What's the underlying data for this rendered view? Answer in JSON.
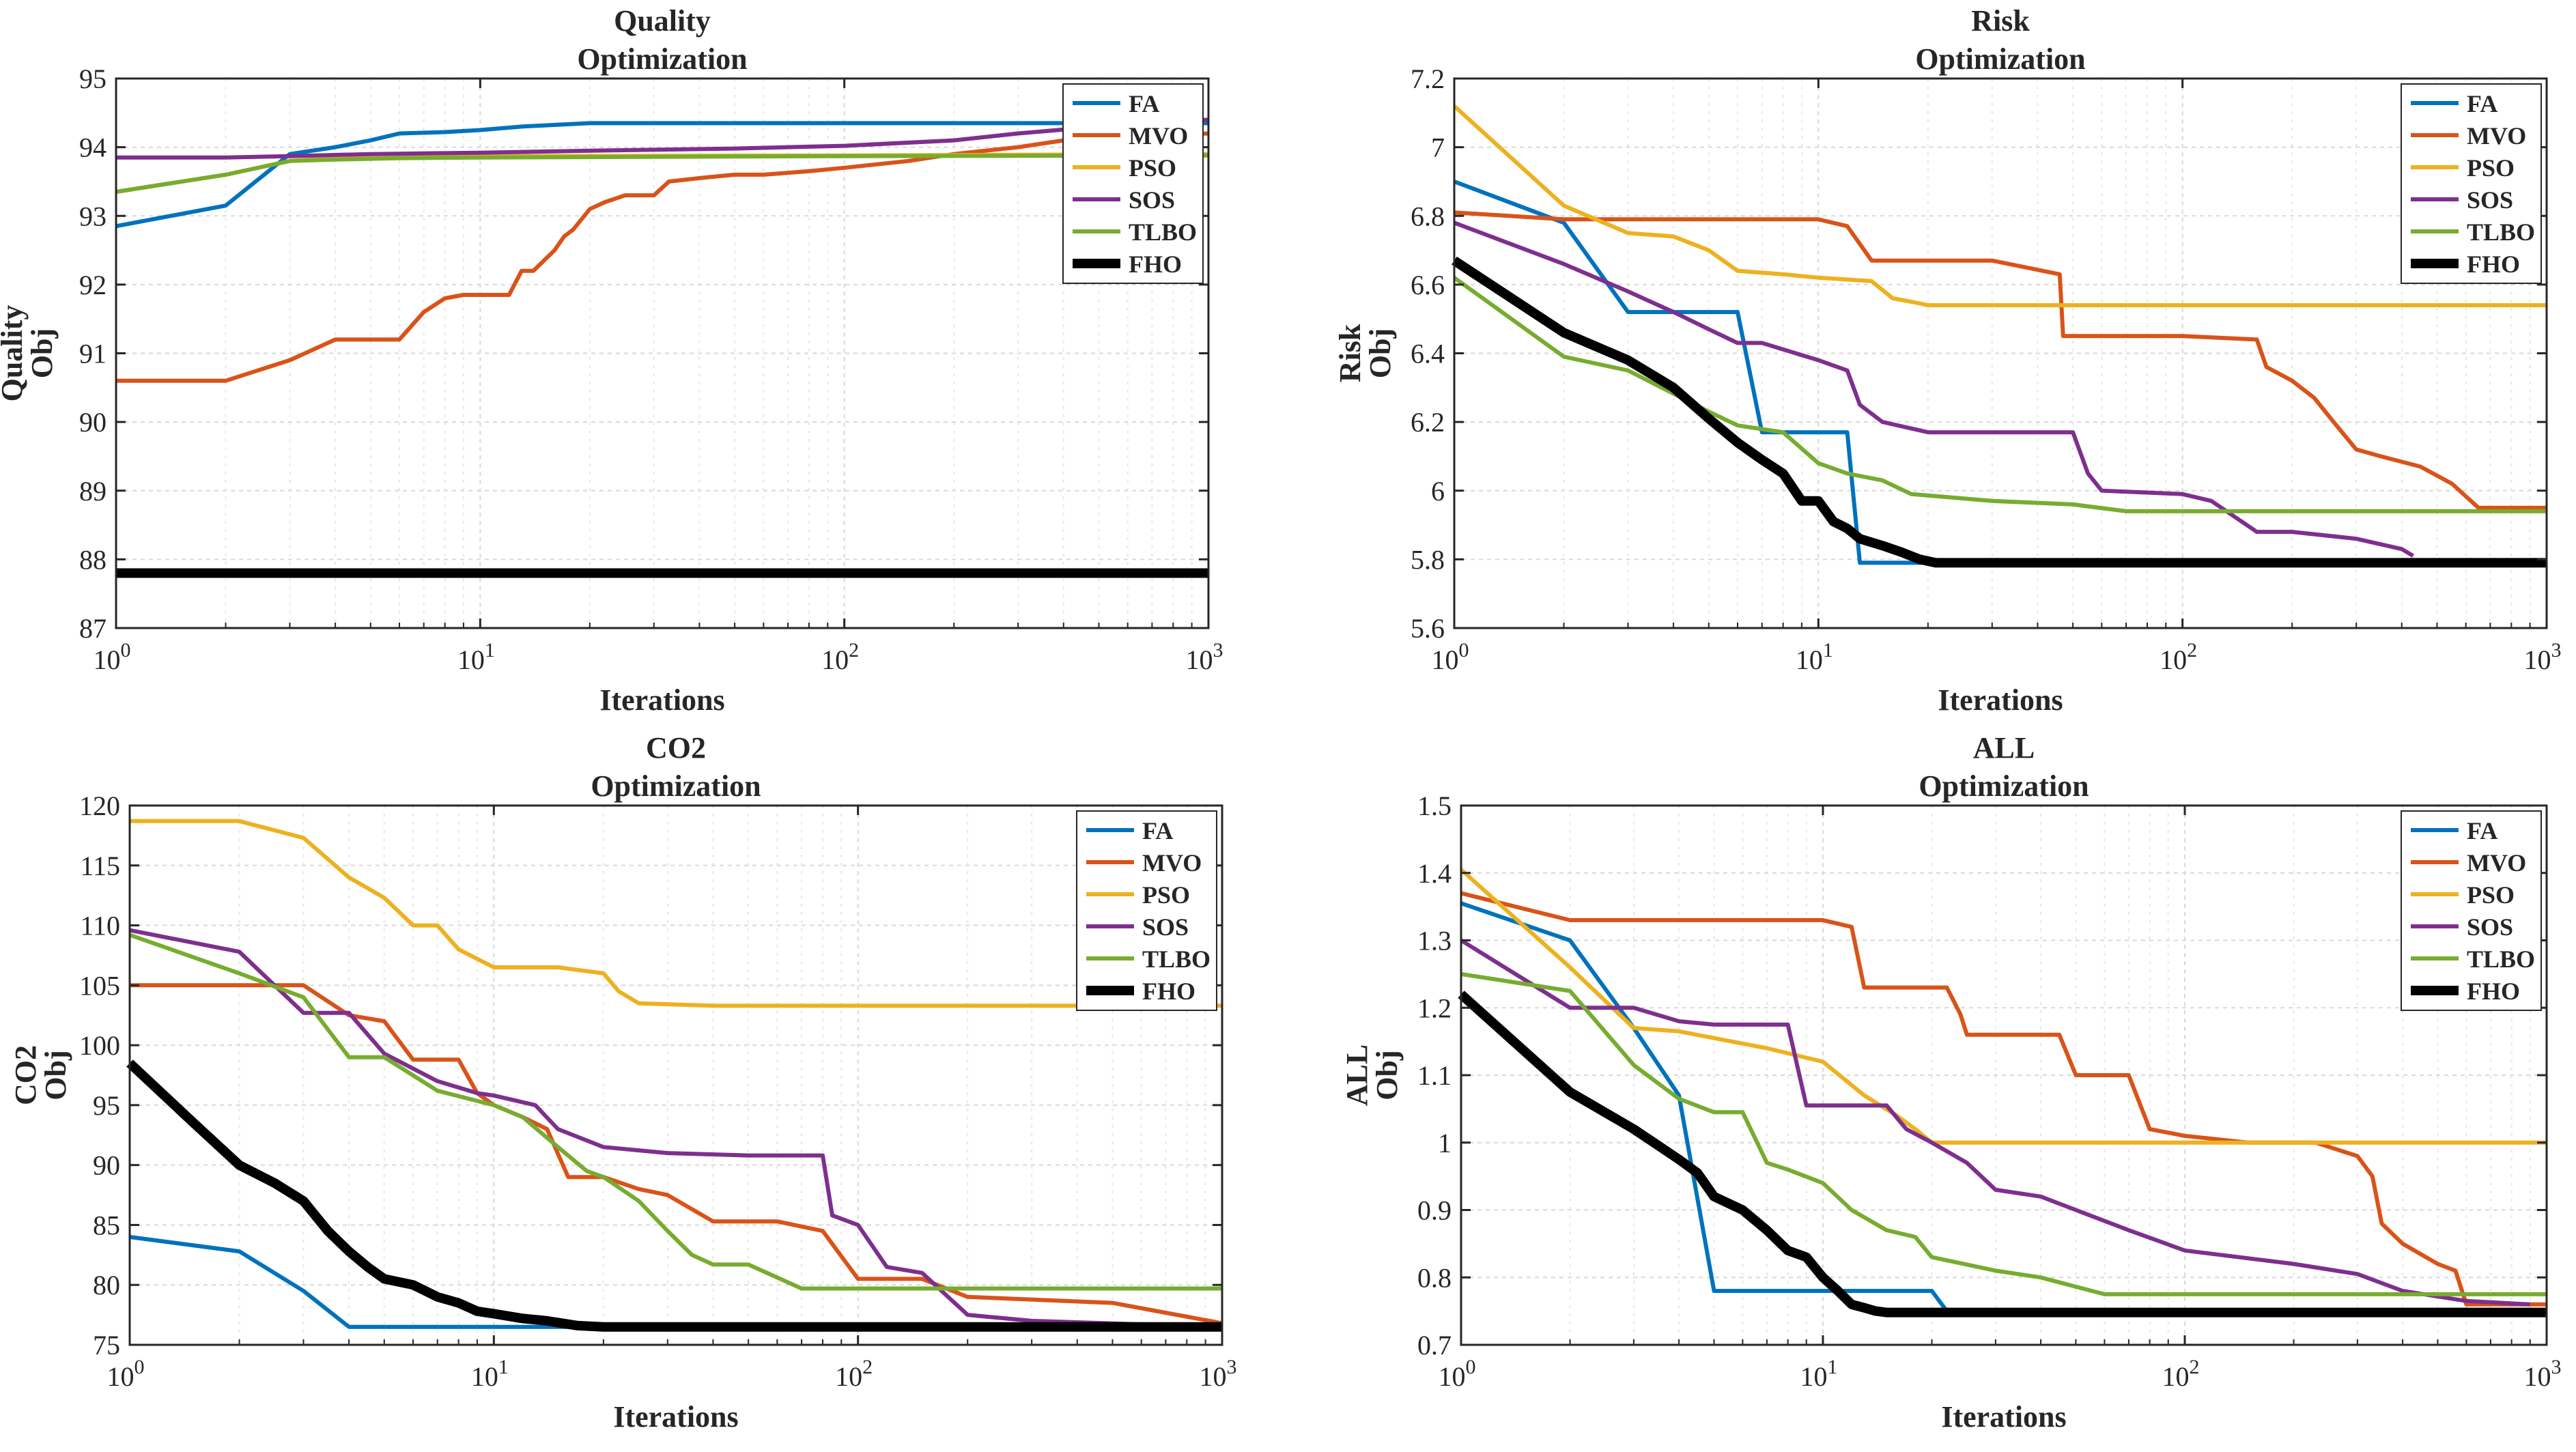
{
  "series_colors": {
    "FA": "#0072BD",
    "MVO": "#D95319",
    "PSO": "#EDB120",
    "SOS": "#7E2F8E",
    "TLBO": "#77AC30",
    "FHO": "#000000"
  },
  "chart_data": [
    {
      "type": "line",
      "title": [
        "Quality",
        "Optimization"
      ],
      "xlabel": "Iterations",
      "ylabel": [
        "Quality",
        "Obj"
      ],
      "xscale": "log",
      "xlim": [
        1,
        1000
      ],
      "ylim": [
        87,
        95
      ],
      "yticks": [
        87,
        88,
        89,
        90,
        91,
        92,
        93,
        94,
        95
      ],
      "ytick_labels": [
        "87",
        "88",
        "89",
        "90",
        "91",
        "92",
        "93",
        "94",
        "95"
      ],
      "xticks": [
        1,
        10,
        100,
        1000
      ],
      "xtick_labels": [
        {
          "base": "10",
          "exp": "0"
        },
        {
          "base": "10",
          "exp": "1"
        },
        {
          "base": "10",
          "exp": "2"
        },
        {
          "base": "10",
          "exp": "3"
        }
      ],
      "grid": true,
      "legend": "top-right",
      "series": [
        {
          "name": "FA",
          "x": [
            1,
            2,
            3,
            4,
            5,
            6,
            8,
            10,
            13,
            20,
            30,
            100,
            1000
          ],
          "y": [
            92.85,
            93.15,
            93.9,
            94.0,
            94.1,
            94.2,
            94.22,
            94.25,
            94.3,
            94.35,
            94.35,
            94.35,
            94.35
          ]
        },
        {
          "name": "MVO",
          "x": [
            1,
            2,
            3,
            4,
            5,
            6,
            7,
            8,
            9,
            10,
            12,
            13,
            14,
            16,
            17,
            18,
            20,
            22,
            25,
            30,
            33,
            40,
            50,
            60,
            80,
            100,
            150,
            200,
            300,
            400,
            1000
          ],
          "y": [
            90.6,
            90.6,
            90.9,
            91.2,
            91.2,
            91.2,
            91.6,
            91.8,
            91.85,
            91.85,
            91.85,
            92.2,
            92.2,
            92.5,
            92.7,
            92.8,
            93.1,
            93.2,
            93.3,
            93.3,
            93.5,
            93.55,
            93.6,
            93.6,
            93.65,
            93.7,
            93.8,
            93.9,
            94.0,
            94.1,
            94.2
          ]
        },
        {
          "name": "PSO",
          "x": [
            1,
            2,
            3,
            4,
            5,
            10,
            100,
            1000
          ],
          "y": [
            93.35,
            93.6,
            93.8,
            93.84,
            93.85,
            93.87,
            93.88,
            93.9
          ]
        },
        {
          "name": "SOS",
          "x": [
            1,
            2,
            3,
            5,
            10,
            20,
            50,
            100,
            200,
            300,
            500,
            1000
          ],
          "y": [
            93.85,
            93.85,
            93.87,
            93.9,
            93.92,
            93.95,
            93.98,
            94.02,
            94.1,
            94.2,
            94.3,
            94.4
          ]
        },
        {
          "name": "TLBO",
          "x": [
            1,
            2,
            3,
            4,
            6,
            10,
            100,
            1000
          ],
          "y": [
            93.35,
            93.6,
            93.8,
            93.82,
            93.84,
            93.85,
            93.87,
            93.88
          ]
        },
        {
          "name": "FHO",
          "x": [
            1,
            1000
          ],
          "y": [
            87.8,
            87.8
          ]
        }
      ]
    },
    {
      "type": "line",
      "title": [
        "Risk",
        "Optimization"
      ],
      "xlabel": "Iterations",
      "ylabel": [
        "Risk",
        "Obj"
      ],
      "xscale": "log",
      "xlim": [
        1,
        1000
      ],
      "ylim": [
        5.6,
        7.2
      ],
      "yticks": [
        5.6,
        5.8,
        6.0,
        6.2,
        6.4,
        6.6,
        6.8,
        7.0,
        7.2
      ],
      "ytick_labels": [
        "5.6",
        "5.8",
        "6",
        "6.2",
        "6.4",
        "6.6",
        "6.8",
        "7",
        "7.2"
      ],
      "xticks": [
        1,
        10,
        100,
        1000
      ],
      "xtick_labels": [
        {
          "base": "10",
          "exp": "0"
        },
        {
          "base": "10",
          "exp": "1"
        },
        {
          "base": "10",
          "exp": "2"
        },
        {
          "base": "10",
          "exp": "3"
        }
      ],
      "grid": true,
      "legend": "top-right",
      "series": [
        {
          "name": "FA",
          "x": [
            1,
            2,
            3,
            6,
            7,
            12,
            13,
            1000
          ],
          "y": [
            6.9,
            6.78,
            6.52,
            6.52,
            6.17,
            6.17,
            5.79,
            5.79
          ]
        },
        {
          "name": "MVO",
          "x": [
            1,
            2,
            10,
            12,
            14,
            30,
            46,
            47,
            100,
            160,
            170,
            200,
            230,
            260,
            300,
            350,
            450,
            550,
            650,
            1000
          ],
          "y": [
            6.81,
            6.79,
            6.79,
            6.77,
            6.67,
            6.67,
            6.63,
            6.45,
            6.45,
            6.44,
            6.36,
            6.32,
            6.27,
            6.2,
            6.12,
            6.1,
            6.07,
            6.02,
            5.95,
            5.95
          ]
        },
        {
          "name": "PSO",
          "x": [
            1,
            2,
            3,
            4,
            5,
            6,
            8,
            10,
            14,
            16,
            18,
            20,
            1000
          ],
          "y": [
            7.12,
            6.83,
            6.75,
            6.74,
            6.7,
            6.64,
            6.63,
            6.62,
            6.61,
            6.56,
            6.55,
            6.54,
            6.54
          ]
        },
        {
          "name": "SOS",
          "x": [
            1,
            2,
            3,
            4,
            5,
            6,
            7,
            10,
            12,
            13,
            15,
            20,
            30,
            50,
            55,
            60,
            100,
            120,
            160,
            200,
            300,
            400,
            430
          ],
          "y": [
            6.78,
            6.66,
            6.58,
            6.52,
            6.47,
            6.43,
            6.43,
            6.38,
            6.35,
            6.25,
            6.2,
            6.17,
            6.17,
            6.17,
            6.05,
            6.0,
            5.99,
            5.97,
            5.88,
            5.88,
            5.86,
            5.83,
            5.81
          ]
        },
        {
          "name": "TLBO",
          "x": [
            1,
            2,
            3,
            5,
            6,
            8,
            10,
            12,
            15,
            18,
            30,
            50,
            70,
            1000
          ],
          "y": [
            6.62,
            6.39,
            6.35,
            6.23,
            6.19,
            6.17,
            6.08,
            6.05,
            6.03,
            5.99,
            5.97,
            5.96,
            5.94,
            5.94
          ]
        },
        {
          "name": "FHO",
          "x": [
            1,
            2,
            3,
            4,
            5,
            6,
            7,
            8,
            9,
            10,
            11,
            12,
            13,
            15,
            17,
            19,
            21,
            1000
          ],
          "y": [
            6.67,
            6.46,
            6.38,
            6.3,
            6.21,
            6.14,
            6.09,
            6.05,
            5.97,
            5.97,
            5.91,
            5.89,
            5.86,
            5.84,
            5.82,
            5.8,
            5.79,
            5.79
          ]
        }
      ]
    },
    {
      "type": "line",
      "title": [
        "CO2",
        "Optimization"
      ],
      "xlabel": "Iterations",
      "ylabel": [
        "CO2",
        "Obj"
      ],
      "xscale": "log",
      "xlim": [
        1,
        1000
      ],
      "ylim": [
        75,
        120
      ],
      "yticks": [
        75,
        80,
        85,
        90,
        95,
        100,
        105,
        110,
        115,
        120
      ],
      "ytick_labels": [
        "75",
        "80",
        "85",
        "90",
        "95",
        "100",
        "105",
        "110",
        "115",
        "120"
      ],
      "xticks": [
        1,
        10,
        100,
        1000
      ],
      "xtick_labels": [
        {
          "base": "10",
          "exp": "0"
        },
        {
          "base": "10",
          "exp": "1"
        },
        {
          "base": "10",
          "exp": "2"
        },
        {
          "base": "10",
          "exp": "3"
        }
      ],
      "grid": true,
      "legend": "top-right",
      "series": [
        {
          "name": "FA",
          "x": [
            1,
            2,
            3,
            4,
            5,
            10,
            1000
          ],
          "y": [
            84,
            82.8,
            79.5,
            76.5,
            76.5,
            76.5,
            76.5
          ]
        },
        {
          "name": "MVO",
          "x": [
            1,
            2,
            3,
            4,
            5,
            6,
            8,
            9,
            10,
            12,
            14,
            16,
            20,
            25,
            30,
            40,
            60,
            80,
            100,
            150,
            200,
            500,
            1000
          ],
          "y": [
            105,
            105,
            105,
            102.5,
            102,
            98.8,
            98.8,
            96,
            95,
            94,
            93,
            89,
            89,
            88,
            87.5,
            85.3,
            85.3,
            84.5,
            80.5,
            80.5,
            79,
            78.5,
            76.8
          ]
        },
        {
          "name": "PSO",
          "x": [
            1,
            2,
            3,
            4,
            5,
            6,
            7,
            8,
            10,
            15,
            20,
            22,
            25,
            40,
            100,
            1000
          ],
          "y": [
            118.7,
            118.7,
            117.3,
            114,
            112.3,
            110,
            110,
            108,
            106.5,
            106.5,
            106,
            104.5,
            103.5,
            103.3,
            103.3,
            103.3
          ]
        },
        {
          "name": "SOS",
          "x": [
            1,
            2,
            3,
            4,
            5,
            7,
            9,
            10,
            13,
            15,
            20,
            30,
            50,
            80,
            85,
            100,
            120,
            150,
            200,
            300,
            1000
          ],
          "y": [
            109.6,
            107.8,
            102.7,
            102.7,
            99.3,
            97,
            96,
            95.8,
            95,
            93,
            91.5,
            91,
            90.8,
            90.8,
            85.8,
            85,
            81.5,
            81,
            77.5,
            77,
            76.5
          ]
        },
        {
          "name": "TLBO",
          "x": [
            1,
            2,
            3,
            4,
            5,
            7,
            10,
            12,
            15,
            18,
            20,
            25,
            30,
            35,
            40,
            50,
            70,
            100,
            1000
          ],
          "y": [
            109.2,
            106,
            104,
            99,
            99,
            96.2,
            95,
            94,
            91.5,
            89.5,
            89,
            87,
            84.5,
            82.5,
            81.7,
            81.7,
            79.7,
            79.7,
            79.7
          ]
        },
        {
          "name": "FHO",
          "x": [
            1,
            1.5,
            2,
            2.5,
            3,
            3.5,
            4,
            4.5,
            5,
            6,
            7,
            8,
            9,
            10,
            12,
            14,
            17,
            20,
            1000
          ],
          "y": [
            98.5,
            93.5,
            90,
            88.5,
            87,
            84.5,
            82.8,
            81.5,
            80.5,
            80,
            79,
            78.5,
            77.8,
            77.6,
            77.2,
            77,
            76.6,
            76.5,
            76.5
          ]
        }
      ]
    },
    {
      "type": "line",
      "title": [
        "ALL",
        "Optimization"
      ],
      "xlabel": "Iterations",
      "ylabel": [
        "ALL",
        "Obj"
      ],
      "xscale": "log",
      "xlim": [
        1,
        1000
      ],
      "ylim": [
        0.7,
        1.5
      ],
      "yticks": [
        0.7,
        0.8,
        0.9,
        1.0,
        1.1,
        1.2,
        1.3,
        1.4,
        1.5
      ],
      "ytick_labels": [
        "0.7",
        "0.8",
        "0.9",
        "1",
        "1.1",
        "1.2",
        "1.3",
        "1.4",
        "1.5"
      ],
      "xticks": [
        1,
        10,
        100,
        1000
      ],
      "xtick_labels": [
        {
          "base": "10",
          "exp": "0"
        },
        {
          "base": "10",
          "exp": "1"
        },
        {
          "base": "10",
          "exp": "2"
        },
        {
          "base": "10",
          "exp": "3"
        }
      ],
      "grid": true,
      "legend": "top-right",
      "series": [
        {
          "name": "FA",
          "x": [
            1,
            2,
            3,
            4,
            5,
            10,
            20,
            22,
            1000
          ],
          "y": [
            1.355,
            1.3,
            1.17,
            1.07,
            0.78,
            0.78,
            0.78,
            0.75,
            0.75
          ]
        },
        {
          "name": "MVO",
          "x": [
            1,
            2,
            10,
            12,
            13,
            22,
            24,
            25,
            30,
            45,
            50,
            70,
            80,
            100,
            150,
            230,
            300,
            330,
            350,
            400,
            500,
            560,
            600,
            1000
          ],
          "y": [
            1.37,
            1.33,
            1.33,
            1.32,
            1.23,
            1.23,
            1.19,
            1.16,
            1.16,
            1.16,
            1.1,
            1.1,
            1.02,
            1.01,
            1.0,
            1.0,
            0.98,
            0.95,
            0.88,
            0.85,
            0.82,
            0.81,
            0.76,
            0.76
          ]
        },
        {
          "name": "PSO",
          "x": [
            1,
            2,
            3,
            4,
            5,
            7,
            10,
            13,
            16,
            18,
            20,
            1000
          ],
          "y": [
            1.405,
            1.26,
            1.17,
            1.165,
            1.155,
            1.14,
            1.12,
            1.07,
            1.04,
            1.02,
            1.0,
            1.0
          ]
        },
        {
          "name": "SOS",
          "x": [
            1,
            2,
            3,
            4,
            5,
            8,
            9,
            10,
            15,
            17,
            20,
            25,
            30,
            40,
            50,
            70,
            100,
            200,
            300,
            400,
            600,
            900
          ],
          "y": [
            1.3,
            1.2,
            1.2,
            1.18,
            1.175,
            1.175,
            1.055,
            1.055,
            1.055,
            1.02,
            1.0,
            0.97,
            0.93,
            0.92,
            0.9,
            0.87,
            0.84,
            0.82,
            0.805,
            0.78,
            0.765,
            0.76
          ]
        },
        {
          "name": "TLBO",
          "x": [
            1,
            2,
            3,
            4,
            5,
            6,
            7,
            8,
            10,
            12,
            15,
            18,
            20,
            30,
            40,
            60,
            100,
            1000
          ],
          "y": [
            1.25,
            1.225,
            1.115,
            1.065,
            1.045,
            1.045,
            0.97,
            0.96,
            0.94,
            0.9,
            0.87,
            0.86,
            0.83,
            0.81,
            0.8,
            0.775,
            0.775,
            0.775
          ]
        },
        {
          "name": "FHO",
          "x": [
            1,
            2,
            3,
            4,
            4.5,
            5,
            6,
            7,
            8,
            9,
            10,
            11,
            12,
            13,
            14,
            15,
            1000
          ],
          "y": [
            1.22,
            1.075,
            1.02,
            0.975,
            0.955,
            0.92,
            0.9,
            0.87,
            0.84,
            0.83,
            0.8,
            0.78,
            0.76,
            0.755,
            0.75,
            0.748,
            0.748
          ]
        }
      ]
    }
  ]
}
